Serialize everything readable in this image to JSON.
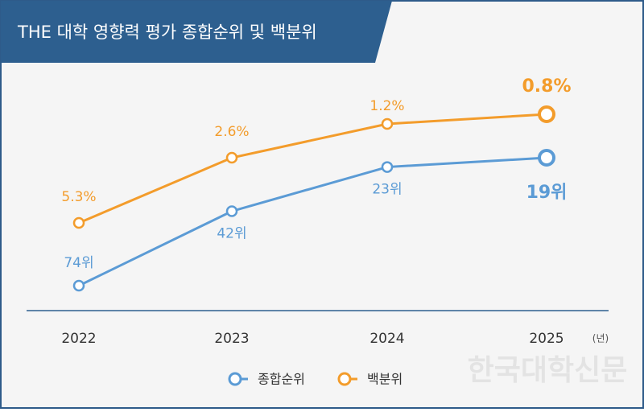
{
  "chart_data": {
    "type": "line",
    "title": "THE 대학 영향력 평가 종합순위 및 백분위",
    "categories": [
      "2022",
      "2023",
      "2024",
      "2025"
    ],
    "x_unit": "(년)",
    "series": [
      {
        "name": "종합순위",
        "color": "#5b9bd5",
        "values": [
          74,
          42,
          23,
          19
        ],
        "value_labels": [
          "74위",
          "42위",
          "23위",
          "19위"
        ]
      },
      {
        "name": "백분위",
        "color": "#f39c2b",
        "values": [
          5.3,
          2.6,
          1.2,
          0.8
        ],
        "value_labels": [
          "5.3%",
          "2.6%",
          "1.2%",
          "0.8%"
        ]
      }
    ],
    "watermark": "한국대학신문"
  }
}
